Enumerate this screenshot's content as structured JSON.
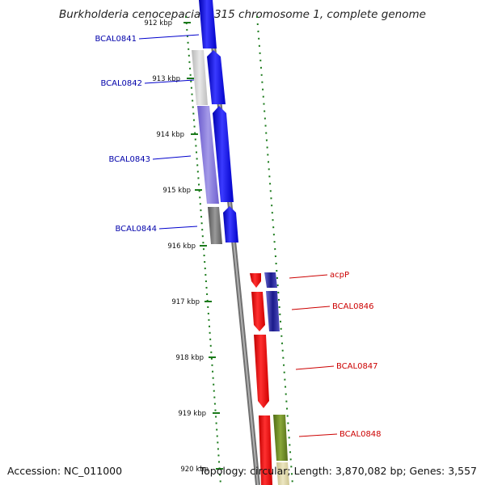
{
  "title": "Burkholderia cenocepacia J2315 chromosome 1, complete genome",
  "footer": {
    "accession": "Accession: NC_011000",
    "topology": "Topology: circular; Length: 3,870,082 bp; Genes: 3,557"
  },
  "ticks": [
    "912 kbp",
    "913 kbp",
    "914 kbp",
    "915 kbp",
    "916 kbp",
    "917 kbp",
    "918 kbp",
    "919 kbp",
    "920 kbp"
  ],
  "genes": [
    {
      "name": "BCAL0841",
      "strand": "forward",
      "color": "#0000cc"
    },
    {
      "name": "BCAL0842",
      "strand": "forward",
      "color": "#0000cc"
    },
    {
      "name": "BCAL0843",
      "strand": "forward",
      "color": "#0000cc"
    },
    {
      "name": "BCAL0844",
      "strand": "forward",
      "color": "#0000cc"
    },
    {
      "name": "acpP",
      "strand": "reverse",
      "color": "#cc0000"
    },
    {
      "name": "BCAL0846",
      "strand": "reverse",
      "color": "#cc0000"
    },
    {
      "name": "BCAL0847",
      "strand": "reverse",
      "color": "#cc0000"
    },
    {
      "name": "BCAL0848",
      "strand": "reverse",
      "color": "#cc0000"
    }
  ],
  "colors": {
    "forward_gene": "#0000ff",
    "reverse_gene": "#ff0000",
    "backbone": "#808080",
    "tick_marks": "#1a7a1a"
  }
}
